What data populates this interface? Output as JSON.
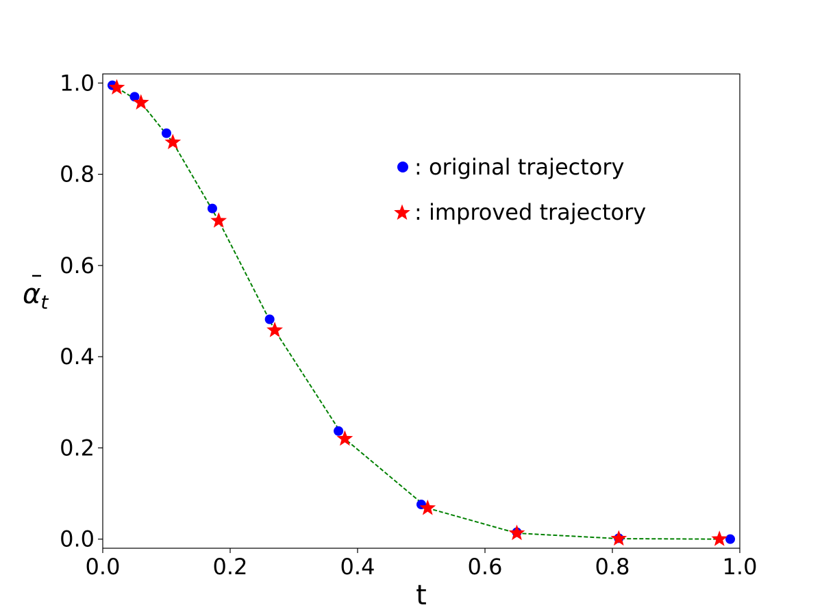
{
  "chart_data": {
    "type": "scatter",
    "xlabel": "t",
    "ylabel_base": "α",
    "ylabel_subscript": "t",
    "xlim": [
      0.0,
      1.0
    ],
    "ylim": [
      -0.02,
      1.02
    ],
    "xticks": [
      0.0,
      0.2,
      0.4,
      0.6,
      0.8,
      1.0
    ],
    "xtick_labels": [
      "0.0",
      "0.2",
      "0.4",
      "0.6",
      "0.8",
      "1.0"
    ],
    "yticks": [
      0.0,
      0.2,
      0.4,
      0.6,
      0.8,
      1.0
    ],
    "ytick_labels": [
      "0.0",
      "0.2",
      "0.4",
      "0.6",
      "0.8",
      "1.0"
    ],
    "grid": false,
    "legend_position": "upper-right",
    "series": [
      {
        "name": "original trajectory",
        "legend_label": ": original trajectory",
        "marker": "circle",
        "color": "#0000ff",
        "x": [
          0.015,
          0.05,
          0.1,
          0.172,
          0.262,
          0.37,
          0.5,
          0.65,
          0.81,
          0.985
        ],
        "y": [
          0.995,
          0.97,
          0.89,
          0.725,
          0.482,
          0.237,
          0.076,
          0.015,
          0.002,
          0.0
        ]
      },
      {
        "name": "improved trajectory",
        "legend_label": ": improved trajectory",
        "marker": "star",
        "color": "#ff0000",
        "x": [
          0.022,
          0.06,
          0.11,
          0.182,
          0.27,
          0.38,
          0.51,
          0.65,
          0.81,
          0.968
        ],
        "y": [
          0.99,
          0.957,
          0.87,
          0.698,
          0.458,
          0.22,
          0.068,
          0.013,
          0.001,
          0.0
        ]
      },
      {
        "name": "connecting line",
        "line_style": "dashed",
        "color": "#008000",
        "x": [
          0.022,
          0.06,
          0.11,
          0.182,
          0.27,
          0.38,
          0.51,
          0.65,
          0.81,
          0.968
        ],
        "y": [
          0.99,
          0.957,
          0.87,
          0.698,
          0.458,
          0.22,
          0.068,
          0.013,
          0.001,
          0.0
        ]
      }
    ]
  }
}
